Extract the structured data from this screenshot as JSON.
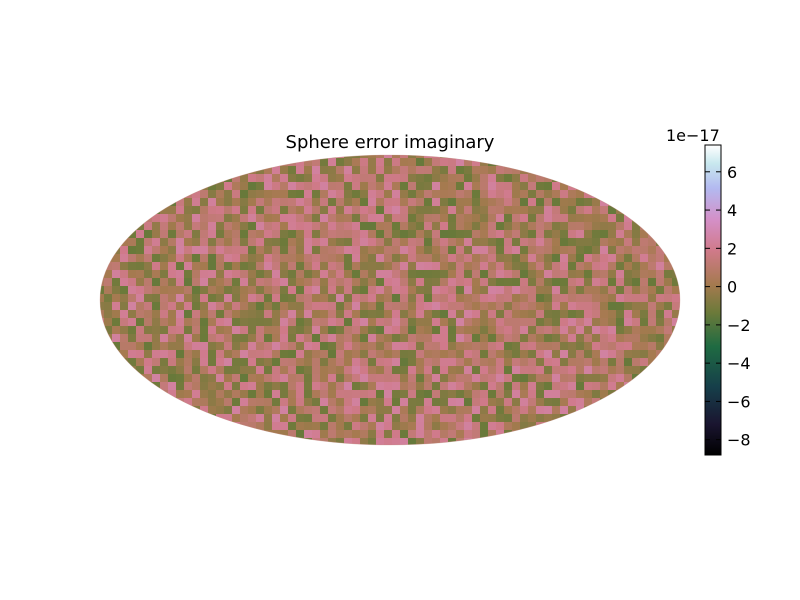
{
  "chart_data": {
    "type": "heatmap",
    "projection": "hammer",
    "title": "Sphere error imaginary",
    "colormap": "cubehelix",
    "colorbar": {
      "offset_label": "1e−17",
      "vmin": -8.8,
      "vmax": 7.4,
      "ticks": [
        -8,
        -6,
        -4,
        -2,
        0,
        2,
        4,
        6
      ],
      "tick_labels": [
        "−8",
        "−6",
        "−4",
        "−2",
        "0",
        "2",
        "4",
        "6"
      ]
    },
    "values_summary": {
      "dominant_range": [
        -1.5,
        2.5
      ],
      "description_of_values": "noise"
    }
  }
}
